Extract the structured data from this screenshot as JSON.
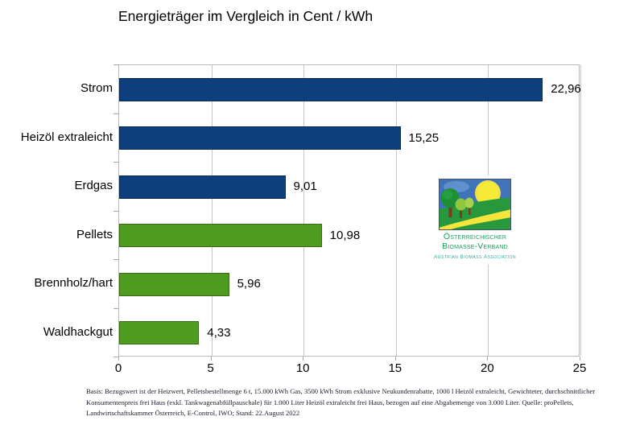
{
  "chart_data": {
    "type": "bar",
    "orientation": "horizontal",
    "title": "Energieträger im Vergleich in Cent / kWh",
    "categories": [
      "Strom",
      "Heizöl extraleicht",
      "Erdgas",
      "Pellets",
      "Brennholz/hart",
      "Waldhackgut"
    ],
    "values": [
      22.96,
      15.25,
      9.01,
      10.98,
      5.96,
      4.33
    ],
    "value_labels": [
      "22,96",
      "15,25",
      "9,01",
      "10,98",
      "5,96",
      "4,33"
    ],
    "bar_colors": [
      "#0d3f7d",
      "#0d3f7d",
      "#0d3f7d",
      "#4f9b20",
      "#4f9b20",
      "#4f9b20"
    ],
    "xlim": [
      0,
      25
    ],
    "x_ticks": [
      0,
      5,
      10,
      15,
      20,
      25
    ],
    "grid": true,
    "legend": false,
    "unit": "Cent / kWh"
  },
  "logo": {
    "org_name_line1": "Österreichischer",
    "org_name_line2": "Biomasse-Verband",
    "org_subtitle": "Austrian Biomass Association",
    "name_color": "#17a15a",
    "subtitle_color": "#2fa79c"
  },
  "footnote": {
    "line1": "Basis: Bezugswert ist der Heizwert, Pelletsbestellmenge 6 t, 15.000 kWh Gas, 3500 kWh Strom exklusive Neukundenrabatte, 1000 l Heizöl extraleicht, Gewichteter, durchschnittlicher",
    "line2": "Konsumentenpreis frei Haus (exkl. Tankwagenabfüllpauschale) für 1.000 Liter Heizöl extraleicht frei Haus, bezogen auf eine Abgabemenge von 3.000 Liter. Quelle: proPellets,",
    "line3": "Landwirtschaftskammer Österreich, E-Control, IWO; Stand: 22.August 2022"
  },
  "colors": {
    "bar_blue": "#0d3f7d",
    "bar_green": "#4f9b20",
    "gridline": "#c6c6c6",
    "axis": "#a6a6a6",
    "text": "#000000"
  }
}
